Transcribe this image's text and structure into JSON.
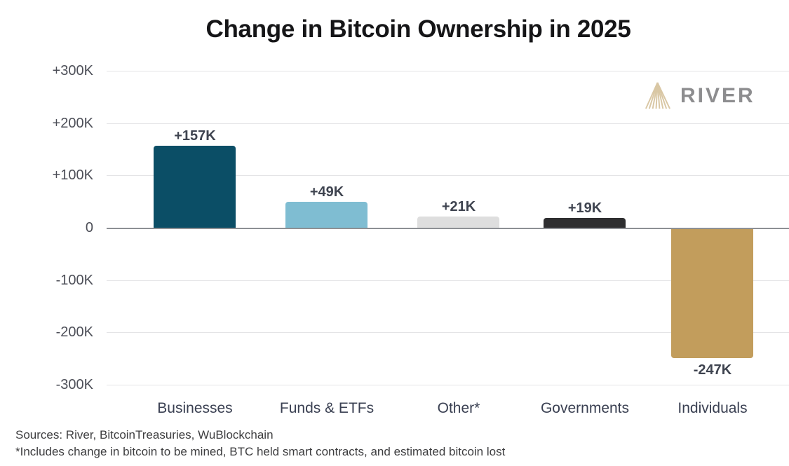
{
  "header": {
    "title": "Change in Bitcoin Ownership in 2025"
  },
  "logo": {
    "brand": "RIVER",
    "icon": "river-mountain-icon",
    "icon_color": "#d9c7a4",
    "text_color": "#8d8d8f"
  },
  "chart_data": {
    "type": "bar",
    "title": "Change in Bitcoin Ownership in 2025",
    "categories": [
      "Businesses",
      "Funds & ETFs",
      "Other*",
      "Governments",
      "Individuals"
    ],
    "values": [
      157000,
      49000,
      21000,
      19000,
      -247000
    ],
    "value_labels": [
      "+157K",
      "+49K",
      "+21K",
      "+19K",
      "-247K"
    ],
    "bar_colors": [
      "#0b4e66",
      "#7fbdd2",
      "#dedede",
      "#2e2e30",
      "#c29d5c"
    ],
    "xlabel": "",
    "ylabel": "",
    "ylim": [
      -300000,
      300000
    ],
    "ytick_values_k": [
      300,
      200,
      100,
      0,
      -100,
      -200,
      -300
    ],
    "ytick_labels": [
      "+300K",
      "+200K",
      "+100K",
      "0",
      "-100K",
      "-200K",
      "-300K"
    ],
    "grid": true,
    "legend": false,
    "zero_line_color": "#8d9094",
    "gridline_color": "#e4e4e6"
  },
  "footer": {
    "sources": "Sources: River, BitcoinTreasuries, WuBlockchain",
    "footnote": "*Includes change in bitcoin to be mined, BTC held smart contracts, and estimated bitcoin lost"
  }
}
